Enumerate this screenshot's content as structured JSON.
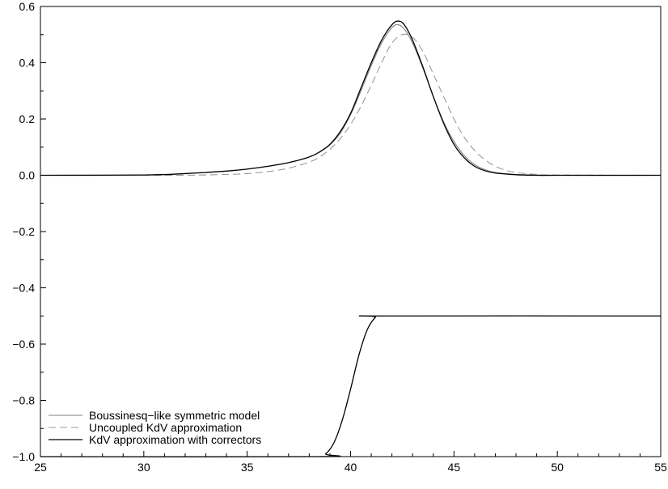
{
  "chart_data": {
    "type": "line",
    "title": "",
    "xlabel": "",
    "ylabel": "",
    "xlim": [
      25,
      55
    ],
    "ylim": [
      -1.0,
      0.6
    ],
    "grid": false,
    "legend_position": "bottom-left",
    "x_ticks": [
      25,
      30,
      35,
      40,
      45,
      50,
      55
    ],
    "x_tick_labels": [
      "25",
      "30",
      "35",
      "40",
      "45",
      "50",
      "55"
    ],
    "y_ticks": [
      -1.0,
      -0.8,
      -0.6,
      -0.4,
      -0.2,
      0.0,
      0.2,
      0.4,
      0.6
    ],
    "y_tick_labels": [
      "−1.0",
      "−0.8",
      "−0.6",
      "−0.4",
      "−0.2",
      "0.0",
      "0.2",
      "0.4",
      "0.6"
    ],
    "series": [
      {
        "name": "Boussinesq−like symmetric model",
        "color": "#7f7f7f",
        "dash": "solid",
        "x": [
          25,
          30,
          32,
          34,
          35,
          36,
          37,
          38,
          38.5,
          39,
          39.5,
          40,
          40.5,
          41,
          41.5,
          42,
          42.3,
          42.6,
          43,
          43.5,
          44,
          44.5,
          45,
          45.5,
          46,
          46.5,
          47,
          48,
          49,
          50,
          55
        ],
        "y": [
          0.0,
          0.001,
          0.006,
          0.015,
          0.022,
          0.032,
          0.045,
          0.065,
          0.082,
          0.108,
          0.15,
          0.215,
          0.3,
          0.39,
          0.47,
          0.525,
          0.535,
          0.52,
          0.47,
          0.38,
          0.28,
          0.19,
          0.12,
          0.07,
          0.038,
          0.02,
          0.01,
          0.003,
          0.001,
          0.0,
          0.0
        ]
      },
      {
        "name": "Uncoupled KdV approximation",
        "color": "#9a9a9a",
        "dash": "dashed",
        "x": [
          25,
          30,
          32,
          34,
          35,
          36,
          37,
          38,
          38.5,
          39,
          39.5,
          40,
          40.5,
          41,
          41.5,
          42,
          42.5,
          43,
          43.5,
          44,
          44.5,
          45,
          45.5,
          46,
          46.5,
          47,
          47.5,
          48,
          49,
          50,
          55
        ],
        "y": [
          0.0,
          0.0,
          0.0,
          0.003,
          0.006,
          0.013,
          0.025,
          0.047,
          0.065,
          0.092,
          0.13,
          0.18,
          0.245,
          0.32,
          0.4,
          0.47,
          0.5,
          0.49,
          0.44,
          0.36,
          0.28,
          0.2,
          0.135,
          0.088,
          0.055,
          0.032,
          0.018,
          0.01,
          0.003,
          0.001,
          0.0
        ]
      },
      {
        "name": "KdV approximation with correctors",
        "color": "#000000",
        "dash": "solid",
        "x": [
          25,
          30,
          32,
          34,
          35,
          36,
          37,
          38,
          38.5,
          39,
          39.5,
          40,
          40.5,
          41,
          41.5,
          42,
          42.3,
          42.6,
          43,
          43.5,
          44,
          44.5,
          45,
          45.5,
          46,
          46.5,
          47,
          48,
          49,
          50,
          55
        ],
        "y": [
          0.0,
          0.001,
          0.006,
          0.015,
          0.022,
          0.032,
          0.045,
          0.065,
          0.083,
          0.11,
          0.155,
          0.22,
          0.31,
          0.4,
          0.48,
          0.535,
          0.548,
          0.535,
          0.48,
          0.385,
          0.28,
          0.185,
          0.11,
          0.062,
          0.032,
          0.016,
          0.008,
          0.002,
          0.0,
          0.0,
          0.0
        ]
      },
      {
        "name": "",
        "color": "#000000",
        "dash": "solid",
        "x": [
          25,
          38.4,
          38.8,
          39.2,
          39.6,
          40.0,
          40.4,
          40.8,
          41.2,
          41.5,
          55
        ],
        "y": [
          -1.0,
          -1.0,
          -0.99,
          -0.95,
          -0.87,
          -0.76,
          -0.64,
          -0.55,
          -0.505,
          -0.5,
          -0.5
        ]
      }
    ],
    "legend": [
      {
        "label": "Boussinesq−like symmetric model",
        "series_index": 0
      },
      {
        "label": "Uncoupled KdV approximation",
        "series_index": 1
      },
      {
        "label": "KdV approximation with correctors",
        "series_index": 2
      }
    ]
  }
}
